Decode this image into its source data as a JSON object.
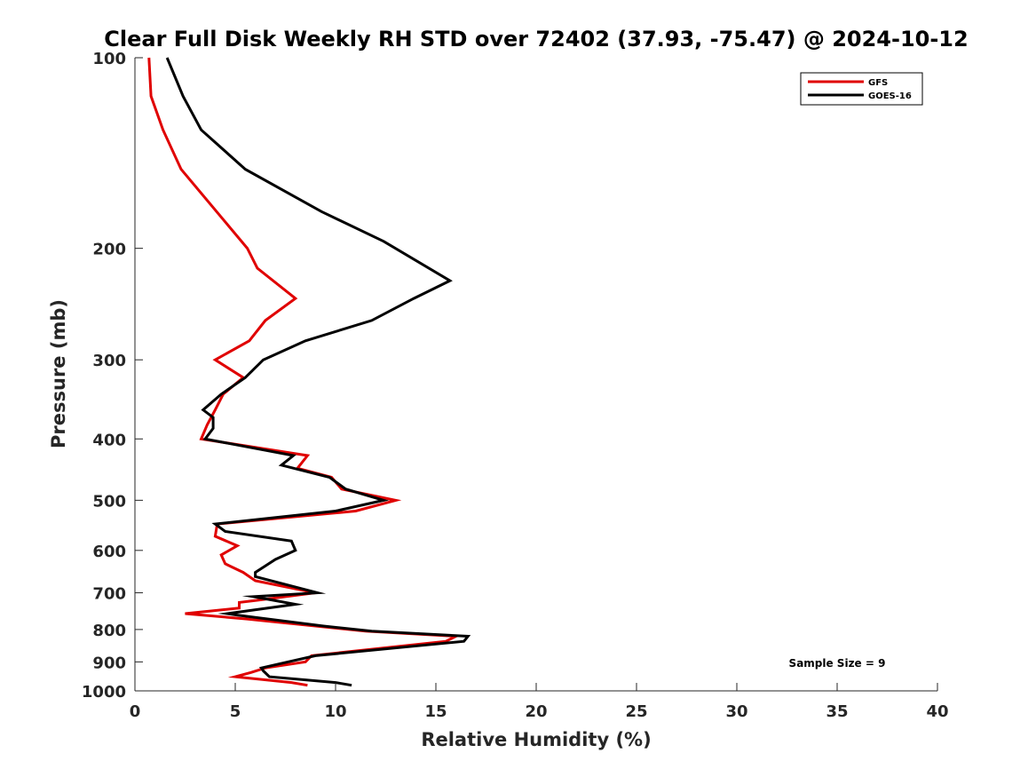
{
  "chart_data": {
    "type": "line",
    "title": "Clear Full Disk Weekly RH STD over 72402 (37.93, -75.47) @ 2024-10-12",
    "xlabel": "Relative Humidity (%)",
    "ylabel": "Pressure (mb)",
    "xlim": [
      0,
      40
    ],
    "ylim": [
      100,
      1000
    ],
    "y_scale": "log",
    "y_reversed": true,
    "x_ticks": [
      0,
      5,
      10,
      15,
      20,
      25,
      30,
      35,
      40
    ],
    "y_ticks": [
      100,
      200,
      300,
      400,
      500,
      600,
      700,
      800,
      900,
      1000
    ],
    "grid": false,
    "legend_position": "top-right",
    "annotation": "Sample Size = 9",
    "series": [
      {
        "name": "GFS",
        "color": "#e00000",
        "points": [
          [
            0.7,
            100
          ],
          [
            0.8,
            115
          ],
          [
            1.4,
            130
          ],
          [
            2.3,
            150
          ],
          [
            5.6,
            200
          ],
          [
            6.1,
            215
          ],
          [
            8.0,
            240
          ],
          [
            6.5,
            260
          ],
          [
            5.7,
            280
          ],
          [
            4.0,
            300
          ],
          [
            5.4,
            320
          ],
          [
            4.4,
            340
          ],
          [
            4.0,
            360
          ],
          [
            3.6,
            380
          ],
          [
            3.3,
            400
          ],
          [
            8.6,
            425
          ],
          [
            8.1,
            445
          ],
          [
            9.8,
            460
          ],
          [
            10.3,
            480
          ],
          [
            13.0,
            500
          ],
          [
            11.0,
            520
          ],
          [
            4.1,
            545
          ],
          [
            4.0,
            570
          ],
          [
            5.1,
            590
          ],
          [
            4.3,
            610
          ],
          [
            4.5,
            630
          ],
          [
            5.4,
            650
          ],
          [
            6.0,
            670
          ],
          [
            9.0,
            700
          ],
          [
            6.0,
            720
          ],
          [
            5.2,
            725
          ],
          [
            5.2,
            740
          ],
          [
            2.5,
            755
          ],
          [
            5.6,
            770
          ],
          [
            9.0,
            790
          ],
          [
            11.5,
            805
          ],
          [
            16.0,
            820
          ],
          [
            15.5,
            835
          ],
          [
            8.8,
            880
          ],
          [
            8.5,
            900
          ],
          [
            6.5,
            920
          ],
          [
            5.8,
            935
          ],
          [
            5.0,
            950
          ],
          [
            7.8,
            970
          ],
          [
            8.6,
            980
          ]
        ]
      },
      {
        "name": "GOES-16",
        "color": "#000000",
        "points": [
          [
            1.6,
            100
          ],
          [
            2.4,
            115
          ],
          [
            3.3,
            130
          ],
          [
            5.5,
            150
          ],
          [
            9.3,
            175
          ],
          [
            12.4,
            195
          ],
          [
            15.7,
            225
          ],
          [
            13.9,
            240
          ],
          [
            11.8,
            260
          ],
          [
            8.5,
            280
          ],
          [
            6.4,
            300
          ],
          [
            5.5,
            320
          ],
          [
            4.3,
            340
          ],
          [
            3.4,
            360
          ],
          [
            3.9,
            370
          ],
          [
            3.9,
            385
          ],
          [
            3.5,
            400
          ],
          [
            7.9,
            425
          ],
          [
            7.3,
            440
          ],
          [
            9.7,
            460
          ],
          [
            10.5,
            480
          ],
          [
            12.4,
            500
          ],
          [
            10.0,
            520
          ],
          [
            4.0,
            545
          ],
          [
            4.5,
            560
          ],
          [
            7.8,
            580
          ],
          [
            8.0,
            600
          ],
          [
            7.0,
            620
          ],
          [
            6.0,
            650
          ],
          [
            6.0,
            660
          ],
          [
            9.1,
            700
          ],
          [
            5.9,
            710
          ],
          [
            8.0,
            730
          ],
          [
            4.6,
            755
          ],
          [
            5.2,
            760
          ],
          [
            9.4,
            790
          ],
          [
            11.8,
            805
          ],
          [
            16.6,
            820
          ],
          [
            16.4,
            835
          ],
          [
            9.0,
            880
          ],
          [
            6.3,
            920
          ],
          [
            6.4,
            930
          ],
          [
            6.7,
            950
          ],
          [
            10.0,
            970
          ],
          [
            10.8,
            980
          ]
        ]
      }
    ]
  }
}
